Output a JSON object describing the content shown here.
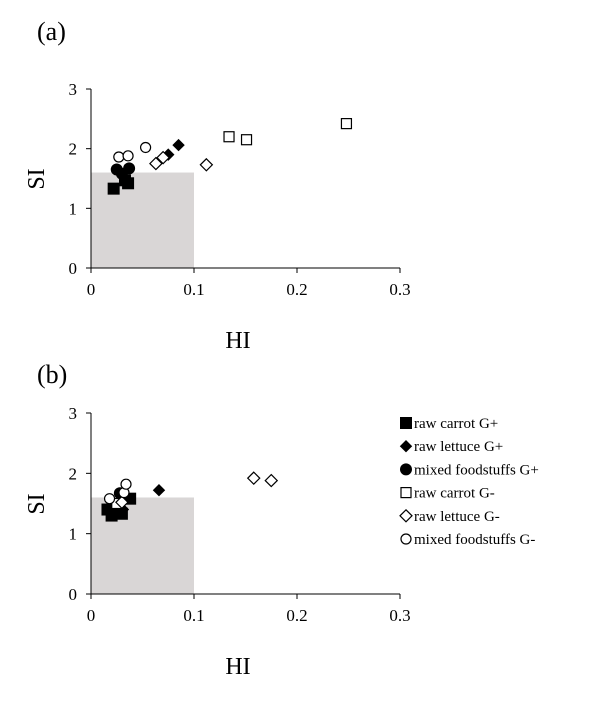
{
  "chart_data": [
    {
      "type": "scatter",
      "panel_label": "(a)",
      "xlabel": "HI",
      "ylabel": "SI",
      "xlim": [
        0,
        0.3
      ],
      "ylim": [
        0,
        3
      ],
      "xticks": [
        "0",
        "0.1",
        "0.2",
        "0.3"
      ],
      "yticks": [
        "0",
        "1",
        "2",
        "3"
      ],
      "threshold_region": {
        "x": [
          0,
          0.1
        ],
        "y": [
          0,
          1.6
        ],
        "color": "#d9d6d6"
      },
      "grid": false,
      "series": [
        {
          "name": "raw carrot G+",
          "marker": "square-filled",
          "points": [
            [
              0.022,
              1.33
            ],
            [
              0.033,
              1.47
            ],
            [
              0.036,
              1.42
            ]
          ]
        },
        {
          "name": "raw lettuce G+",
          "marker": "diamond-filled",
          "points": [
            [
              0.075,
              1.9
            ],
            [
              0.085,
              2.06
            ]
          ]
        },
        {
          "name": "mixed foodstuffs G+",
          "marker": "circle-filled",
          "points": [
            [
              0.025,
              1.65
            ],
            [
              0.03,
              1.58
            ],
            [
              0.037,
              1.67
            ]
          ]
        },
        {
          "name": "raw carrot G-",
          "marker": "square-open",
          "points": [
            [
              0.134,
              2.2
            ],
            [
              0.151,
              2.15
            ],
            [
              0.248,
              2.42
            ]
          ]
        },
        {
          "name": "raw lettuce G-",
          "marker": "diamond-open",
          "points": [
            [
              0.063,
              1.75
            ],
            [
              0.07,
              1.85
            ],
            [
              0.112,
              1.73
            ]
          ]
        },
        {
          "name": "mixed foodstuffs G-",
          "marker": "circle-open",
          "points": [
            [
              0.027,
              1.86
            ],
            [
              0.036,
              1.88
            ],
            [
              0.053,
              2.02
            ]
          ]
        }
      ]
    },
    {
      "type": "scatter",
      "panel_label": "(b)",
      "xlabel": "HI",
      "ylabel": "SI",
      "xlim": [
        0,
        0.3
      ],
      "ylim": [
        0,
        3
      ],
      "xticks": [
        "0",
        "0.1",
        "0.2",
        "0.3"
      ],
      "yticks": [
        "0",
        "1",
        "2",
        "3"
      ],
      "threshold_region": {
        "x": [
          0,
          0.1
        ],
        "y": [
          0,
          1.6
        ],
        "color": "#d9d6d6"
      },
      "grid": false,
      "legend_position": "right",
      "series": [
        {
          "name": "raw carrot G+",
          "marker": "square-filled",
          "points": [
            [
              0.016,
              1.4
            ],
            [
              0.02,
              1.3
            ],
            [
              0.03,
              1.33
            ],
            [
              0.038,
              1.58
            ]
          ]
        },
        {
          "name": "raw lettuce G+",
          "marker": "diamond-filled",
          "points": [
            [
              0.02,
              1.47
            ],
            [
              0.031,
              1.4
            ],
            [
              0.066,
              1.72
            ]
          ]
        },
        {
          "name": "mixed foodstuffs G+",
          "marker": "circle-filled",
          "points": [
            [
              0.022,
              1.48
            ],
            [
              0.028,
              1.67
            ]
          ]
        },
        {
          "name": "raw carrot G-",
          "marker": "square-open",
          "points": [
            [
              0.025,
              1.5
            ]
          ]
        },
        {
          "name": "raw lettuce G-",
          "marker": "diamond-open",
          "points": [
            [
              0.03,
              1.52
            ],
            [
              0.158,
              1.92
            ],
            [
              0.175,
              1.88
            ]
          ]
        },
        {
          "name": "mixed foodstuffs G-",
          "marker": "circle-open",
          "points": [
            [
              0.018,
              1.58
            ],
            [
              0.032,
              1.68
            ],
            [
              0.034,
              1.82
            ]
          ]
        }
      ]
    }
  ]
}
